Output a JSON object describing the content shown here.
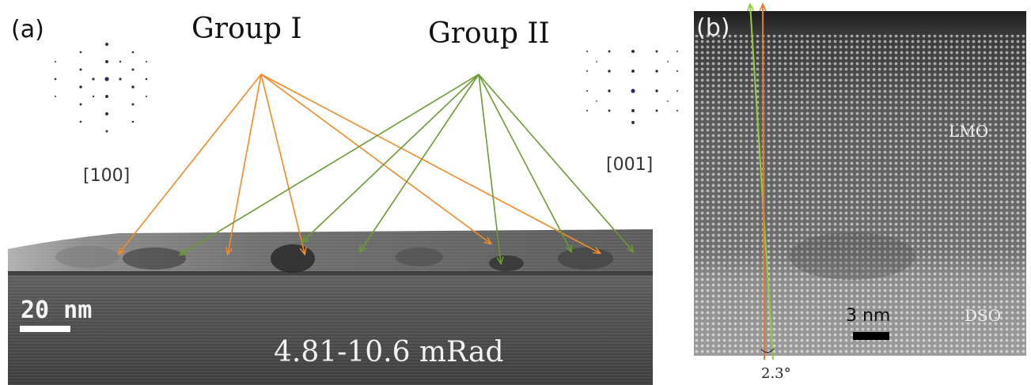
{
  "panel_a": {
    "label": "(a)",
    "group1_title": "Group I",
    "group2_title": "Group II",
    "zone_left": "[100]",
    "zone_right": "[001]",
    "scalebar_label": "20  nm",
    "collection_angle": "4.81-10.6 mRad",
    "arrow_colors": {
      "group1": "#f08a28",
      "group2": "#6a9a32"
    }
  },
  "panel_b": {
    "label": "(b)",
    "layer_top": "LMO",
    "layer_bottom": "DSO",
    "scalebar_label": "3 nm",
    "tilt_angle": "2.3°",
    "line_colors": {
      "green": "#8fcd3c",
      "orange": "#e77a2a"
    }
  }
}
